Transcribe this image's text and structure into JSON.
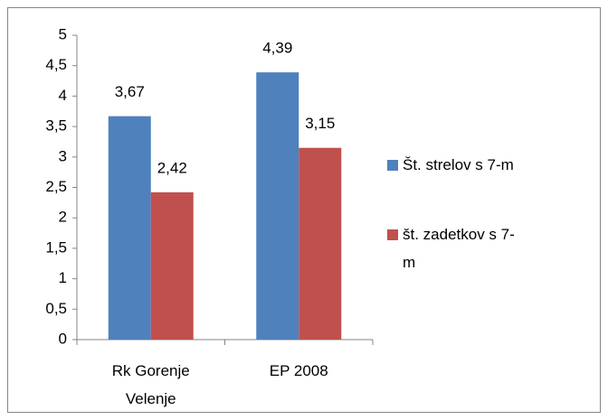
{
  "chart_data": {
    "type": "bar",
    "categories": [
      "Rk Gorenje Velenje",
      "EP 2008"
    ],
    "series": [
      {
        "name": "Št. strelov s 7-m",
        "color": "#4f81bd",
        "values": [
          3.67,
          4.39
        ],
        "value_labels": [
          "3,67",
          "4,39"
        ]
      },
      {
        "name": "št. zadetkov s 7-m",
        "color": "#c0504d",
        "values": [
          2.42,
          3.15
        ],
        "value_labels": [
          "2,42",
          "3,15"
        ]
      }
    ],
    "ylim": [
      0,
      5
    ],
    "yticks": [
      0,
      {
        "value": 0.5,
        "label": "0,5"
      },
      1,
      {
        "value": 1.5,
        "label": "1,5"
      },
      2,
      {
        "value": 2.5,
        "label": "2,5"
      },
      3,
      {
        "value": 3.5,
        "label": "3,5"
      },
      4,
      {
        "value": 4.5,
        "label": "4,5"
      },
      5
    ],
    "legend": "right",
    "grid": false
  }
}
